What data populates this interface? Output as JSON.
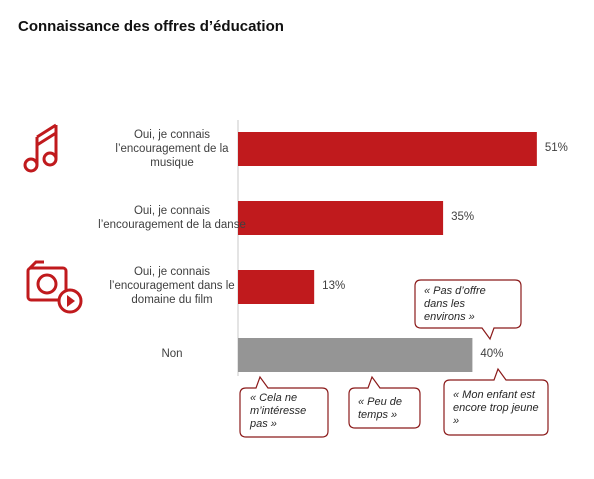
{
  "chart_data": {
    "type": "bar",
    "orientation": "horizontal",
    "title": "Connaissance des offres d’éducation",
    "categories": [
      "Oui, je connais l’encouragement de la musique",
      "Oui, je connais l’encouragement de la danse",
      "Oui, je connais l’encouragement dans le domaine du film",
      "Non"
    ],
    "values": [
      51,
      35,
      13,
      40
    ],
    "value_labels": [
      "51%",
      "35%",
      "13%",
      "40%"
    ],
    "colors": [
      "#c01a1d",
      "#c01a1d",
      "#c01a1d",
      "#959595"
    ],
    "annotations": [
      "« Pas d’offre dans les environs »",
      "« Mon enfant est encore trop jeune »",
      "« Cela ne m’intéresse pas »",
      "« Peu de temps »"
    ]
  }
}
